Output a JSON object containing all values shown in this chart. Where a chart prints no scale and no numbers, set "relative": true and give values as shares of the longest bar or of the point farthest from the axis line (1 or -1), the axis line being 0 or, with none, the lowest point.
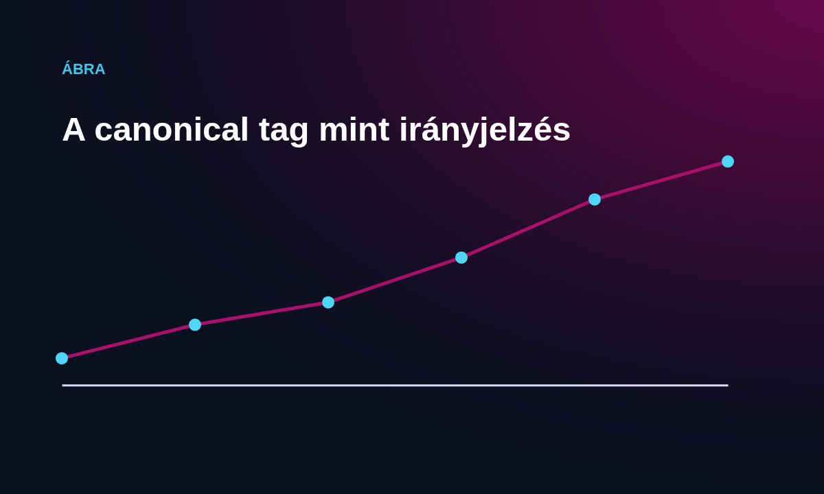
{
  "chart_data": {
    "type": "line",
    "subtitle": "ÁBRA",
    "title": "A canonical tag mint irányjelzés",
    "categories": [
      null,
      null,
      null,
      null,
      null,
      null
    ],
    "relative": true,
    "marker": "circle",
    "line_style": "solid",
    "series": [
      {
        "color": "#a8106a",
        "colors": [
          "#4dd6f5",
          "#4dd6f5",
          "#4dd6f5",
          "#4dd6f5",
          "#4dd6f5",
          "#4dd6f5"
        ],
        "values": [
          0.12,
          0.27,
          0.37,
          0.57,
          0.83,
          1
        ]
      }
    ]
  }
}
